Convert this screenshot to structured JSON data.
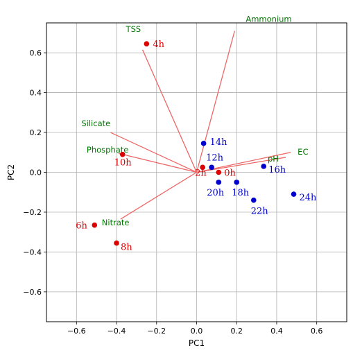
{
  "chart_data": {
    "type": "scatter",
    "title": "",
    "xlabel": "PC1",
    "ylabel": "PC2",
    "xlim": [
      -0.75,
      0.75
    ],
    "ylim": [
      -0.75,
      0.75
    ],
    "xticks": [
      -0.6,
      -0.4,
      -0.2,
      0.0,
      0.2,
      0.4,
      0.6
    ],
    "yticks": [
      -0.6,
      -0.4,
      -0.2,
      0.0,
      0.2,
      0.4,
      0.6
    ],
    "xtick_labels": [
      "−0.6",
      "−0.4",
      "−0.2",
      "0.0",
      "0.2",
      "0.4",
      "0.6"
    ],
    "ytick_labels": [
      "−0.6",
      "−0.4",
      "−0.2",
      "0.0",
      "0.2",
      "0.4",
      "0.6"
    ],
    "grid": true,
    "colors": {
      "red_group": "#dd0000",
      "blue_group": "#0000cc",
      "vector": "#ee6666",
      "vector_label": "#007700"
    },
    "points": [
      {
        "label": "0h",
        "x": 0.11,
        "y": 0.0,
        "group": "red"
      },
      {
        "label": "2h",
        "x": 0.03,
        "y": 0.025,
        "group": "red"
      },
      {
        "label": "4h",
        "x": -0.25,
        "y": 0.645,
        "group": "red"
      },
      {
        "label": "6h",
        "x": -0.51,
        "y": -0.265,
        "group": "red"
      },
      {
        "label": "8h",
        "x": -0.4,
        "y": -0.355,
        "group": "red"
      },
      {
        "label": "10h",
        "x": -0.37,
        "y": 0.09,
        "group": "red"
      },
      {
        "label": "12h",
        "x": 0.075,
        "y": 0.025,
        "group": "blue"
      },
      {
        "label": "14h",
        "x": 0.035,
        "y": 0.145,
        "group": "blue"
      },
      {
        "label": "16h",
        "x": 0.335,
        "y": 0.03,
        "group": "blue"
      },
      {
        "label": "18h",
        "x": 0.2,
        "y": -0.05,
        "group": "blue"
      },
      {
        "label": "20h",
        "x": 0.11,
        "y": -0.05,
        "group": "blue"
      },
      {
        "label": "22h",
        "x": 0.285,
        "y": -0.14,
        "group": "blue"
      },
      {
        "label": "24h",
        "x": 0.485,
        "y": -0.11,
        "group": "blue"
      }
    ],
    "loadings": [
      {
        "name": "TSS",
        "x": -0.27,
        "y": 0.615
      },
      {
        "name": "Ammonium",
        "x": 0.19,
        "y": 0.71
      },
      {
        "name": "Silicate",
        "x": -0.43,
        "y": 0.2
      },
      {
        "name": "Phosphate",
        "x": -0.39,
        "y": 0.095
      },
      {
        "name": "Nitrate",
        "x": -0.38,
        "y": -0.235
      },
      {
        "name": "EC",
        "x": 0.47,
        "y": 0.1
      },
      {
        "name": "pH",
        "x": 0.445,
        "y": 0.075
      }
    ]
  }
}
